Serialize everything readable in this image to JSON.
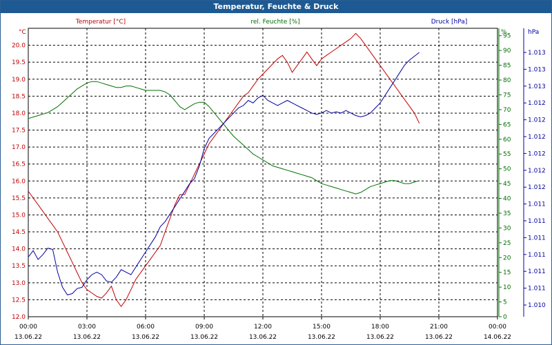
{
  "window": {
    "title": "Temperatur, Feuchte & Druck"
  },
  "colors": {
    "temperature": "#c00000",
    "humidity": "#007000",
    "pressure": "#0000a0",
    "grid": "#000000",
    "title_bg": "#1d5a93"
  },
  "chart_data": {
    "type": "line",
    "grid": true,
    "legend_placement": "top",
    "x_ticks": [
      {
        "time": "00:00",
        "date": "13.06.22"
      },
      {
        "time": "03:00",
        "date": "13.06.22"
      },
      {
        "time": "06:00",
        "date": "13.06.22"
      },
      {
        "time": "09:00",
        "date": "13.06.22"
      },
      {
        "time": "12:00",
        "date": "13.06.22"
      },
      {
        "time": "15:00",
        "date": "13.06.22"
      },
      {
        "time": "18:00",
        "date": "13.06.22"
      },
      {
        "time": "21:00",
        "date": "13.06.22"
      },
      {
        "time": "00:00",
        "date": "14.06.22"
      }
    ],
    "xlim_hours": [
      0,
      24
    ],
    "axes": {
      "temperature": {
        "label": "Temperatur [°C]",
        "unit": "°C",
        "ylim": [
          12.0,
          20.5
        ],
        "ticks": [
          "12.0",
          "12.5",
          "13.0",
          "13.5",
          "14.0",
          "14.5",
          "15.0",
          "15.5",
          "16.0",
          "16.5",
          "17.0",
          "17.5",
          "18.0",
          "18.5",
          "19.0",
          "19.5",
          "20.0"
        ]
      },
      "humidity": {
        "label": "rel. Feuchte [%]",
        "unit": "%",
        "ylim": [
          0,
          97.5
        ],
        "ticks": [
          "0",
          "5",
          "10",
          "15",
          "20",
          "25",
          "30",
          "35",
          "40",
          "45",
          "50",
          "55",
          "60",
          "65",
          "70",
          "75",
          "80",
          "85",
          "90",
          "95"
        ]
      },
      "pressure": {
        "label": "Druck [hPa]",
        "unit": "hPa",
        "ticks": [
          "1.010",
          "1.011",
          "1.011",
          "1.011",
          "1.011",
          "1.011",
          "1.011",
          "1.012",
          "1.012",
          "1.012",
          "1.012",
          "1.012",
          "1.012",
          "1.013",
          "1.013",
          "1.013"
        ]
      }
    },
    "series": [
      {
        "name": "Temperatur [°C]",
        "axis": "temperature",
        "color": "#c00000",
        "x": [
          0,
          0.25,
          0.5,
          0.75,
          1,
          1.25,
          1.5,
          1.75,
          2,
          2.25,
          2.5,
          2.75,
          3,
          3.25,
          3.5,
          3.75,
          4,
          4.25,
          4.5,
          4.75,
          5,
          5.25,
          5.5,
          5.75,
          6,
          6.25,
          6.5,
          6.75,
          7,
          7.25,
          7.5,
          7.75,
          8,
          8.25,
          8.5,
          8.75,
          9,
          9.25,
          9.5,
          9.75,
          10,
          10.25,
          10.5,
          10.75,
          11,
          11.25,
          11.5,
          11.75,
          12,
          12.25,
          12.5,
          12.75,
          13,
          13.25,
          13.5,
          13.75,
          14,
          14.25,
          14.5,
          14.75,
          15,
          15.25,
          15.5,
          15.75,
          16,
          16.25,
          16.5,
          16.75,
          17,
          17.25,
          17.5,
          17.75,
          18,
          18.25,
          18.5,
          18.75,
          19,
          19.25,
          19.5,
          19.75,
          20
        ],
        "values": [
          15.7,
          15.5,
          15.3,
          15.1,
          14.9,
          14.7,
          14.5,
          14.2,
          13.9,
          13.6,
          13.3,
          13.0,
          12.8,
          12.7,
          12.6,
          12.55,
          12.7,
          12.9,
          12.5,
          12.3,
          12.5,
          12.8,
          13.1,
          13.3,
          13.5,
          13.7,
          13.9,
          14.1,
          14.5,
          14.9,
          15.3,
          15.6,
          15.6,
          15.9,
          16.2,
          16.5,
          16.8,
          17.1,
          17.3,
          17.5,
          17.7,
          17.9,
          18.1,
          18.3,
          18.5,
          18.6,
          18.8,
          19.0,
          19.15,
          19.3,
          19.45,
          19.6,
          19.7,
          19.5,
          19.2,
          19.4,
          19.6,
          19.8,
          19.6,
          19.4,
          19.6,
          19.7,
          19.8,
          19.9,
          20.0,
          20.1,
          20.2,
          20.35,
          20.2,
          20.0,
          19.8,
          19.6,
          19.4,
          19.2,
          19.0,
          18.8,
          18.6,
          18.4,
          18.2,
          18.0,
          17.7
        ]
      },
      {
        "name": "rel. Feuchte [%]",
        "axis": "humidity",
        "color": "#007000",
        "x": [
          0,
          0.25,
          0.5,
          0.75,
          1,
          1.25,
          1.5,
          1.75,
          2,
          2.25,
          2.5,
          2.75,
          3,
          3.25,
          3.5,
          3.75,
          4,
          4.25,
          4.5,
          4.75,
          5,
          5.25,
          5.5,
          5.75,
          6,
          6.25,
          6.5,
          6.75,
          7,
          7.25,
          7.5,
          7.75,
          8,
          8.25,
          8.5,
          8.75,
          9,
          9.25,
          9.5,
          9.75,
          10,
          10.25,
          10.5,
          10.75,
          11,
          11.25,
          11.5,
          11.75,
          12,
          12.25,
          12.5,
          12.75,
          13,
          13.25,
          13.5,
          13.75,
          14,
          14.25,
          14.5,
          14.75,
          15,
          15.25,
          15.5,
          15.75,
          16,
          16.25,
          16.5,
          16.75,
          17,
          17.25,
          17.5,
          17.75,
          18,
          18.25,
          18.5,
          18.75,
          19,
          19.25,
          19.5,
          19.75,
          20
        ],
        "values": [
          67,
          67.5,
          68,
          68.5,
          69,
          70,
          71,
          72.5,
          74,
          75.5,
          77,
          78,
          79,
          79.5,
          79.5,
          79,
          78.5,
          78,
          77.5,
          77.5,
          78,
          78,
          77.5,
          77,
          76.5,
          76.5,
          76.5,
          76.5,
          76,
          75,
          73,
          71,
          70,
          71,
          72,
          72.5,
          72.5,
          71,
          69,
          67,
          65,
          63,
          61,
          59.5,
          58,
          56.5,
          55,
          54,
          53,
          52,
          51,
          50.5,
          50,
          49.5,
          49,
          48.5,
          48,
          47.5,
          47,
          46,
          45,
          44.5,
          44,
          43.5,
          43,
          42.5,
          42,
          41.5,
          42,
          43,
          44,
          44.5,
          45,
          45.5,
          46,
          46,
          45.5,
          45,
          45,
          45.5,
          46
        ]
      },
      {
        "name": "Druck [hPa]",
        "axis": "pressure",
        "color": "#0000a0",
        "x": [
          0,
          0.25,
          0.5,
          0.75,
          1,
          1.25,
          1.5,
          1.75,
          2,
          2.25,
          2.5,
          2.75,
          3,
          3.25,
          3.5,
          3.75,
          4,
          4.25,
          4.5,
          4.75,
          5,
          5.25,
          5.5,
          5.75,
          6,
          6.25,
          6.5,
          6.75,
          7,
          7.25,
          7.5,
          7.75,
          8,
          8.25,
          8.5,
          8.75,
          9,
          9.25,
          9.5,
          9.75,
          10,
          10.25,
          10.5,
          10.75,
          11,
          11.25,
          11.5,
          11.75,
          12,
          12.25,
          12.5,
          12.75,
          13,
          13.25,
          13.5,
          13.75,
          14,
          14.25,
          14.5,
          14.75,
          15,
          15.25,
          15.5,
          15.75,
          16,
          16.25,
          16.5,
          16.75,
          17,
          17.25,
          17.5,
          17.75,
          18,
          18.25,
          18.5,
          18.75,
          19,
          19.25,
          19.5,
          19.75,
          20
        ],
        "values": [
          0.19,
          0.215,
          0.18,
          0.2,
          0.225,
          0.22,
          0.13,
          0.07,
          0.04,
          0.045,
          0.065,
          0.07,
          0.1,
          0.12,
          0.13,
          0.12,
          0.095,
          0.09,
          0.11,
          0.14,
          0.13,
          0.12,
          0.15,
          0.18,
          0.21,
          0.24,
          0.27,
          0.31,
          0.33,
          0.36,
          0.39,
          0.42,
          0.45,
          0.48,
          0.5,
          0.55,
          0.62,
          0.66,
          0.68,
          0.7,
          0.72,
          0.74,
          0.76,
          0.78,
          0.79,
          0.81,
          0.8,
          0.82,
          0.83,
          0.81,
          0.8,
          0.79,
          0.8,
          0.81,
          0.8,
          0.79,
          0.78,
          0.77,
          0.76,
          0.755,
          0.76,
          0.77,
          0.76,
          0.765,
          0.76,
          0.77,
          0.76,
          0.75,
          0.745,
          0.75,
          0.76,
          0.78,
          0.8,
          0.83,
          0.86,
          0.89,
          0.92,
          0.95,
          0.97,
          0.985,
          1.0
        ]
      }
    ]
  }
}
